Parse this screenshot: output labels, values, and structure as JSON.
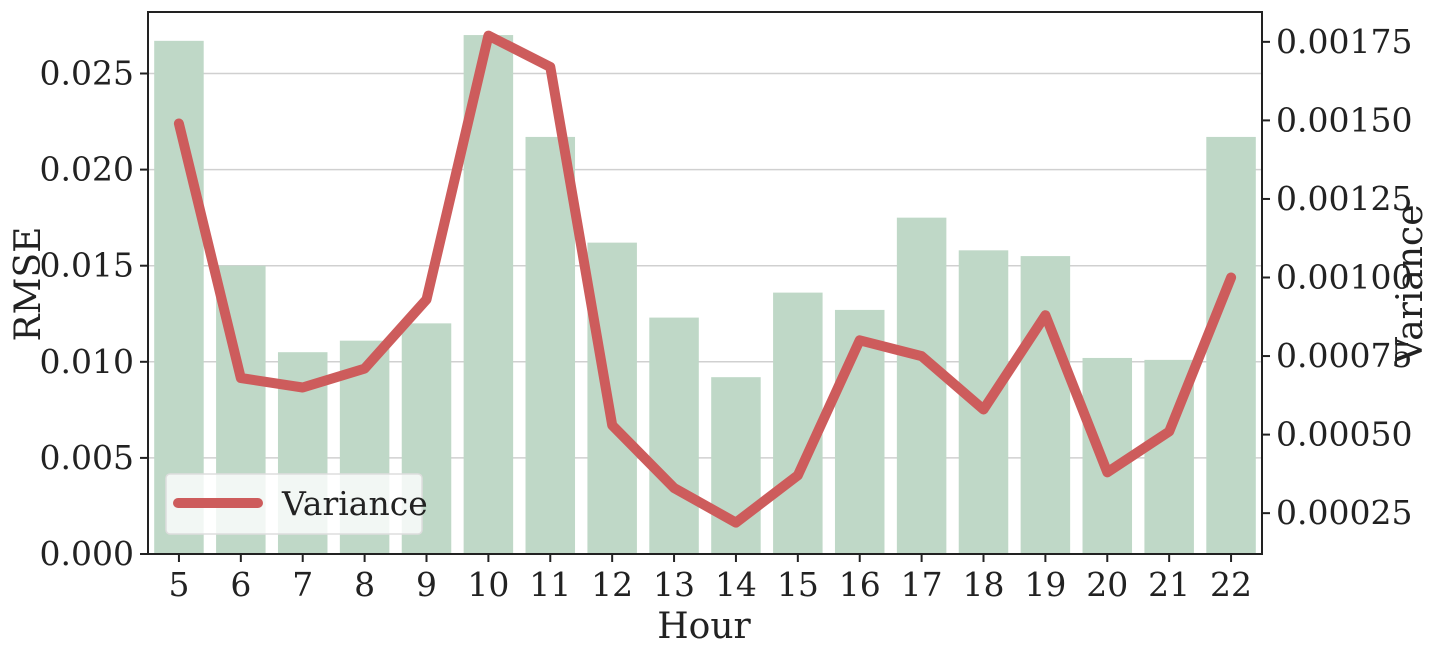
{
  "chart_data": {
    "type": "bar",
    "x": [
      5,
      6,
      7,
      8,
      9,
      10,
      11,
      12,
      13,
      14,
      15,
      16,
      17,
      18,
      19,
      20,
      21,
      22
    ],
    "categories": [
      "5",
      "6",
      "7",
      "8",
      "9",
      "10",
      "11",
      "12",
      "13",
      "14",
      "15",
      "16",
      "17",
      "18",
      "19",
      "20",
      "21",
      "22"
    ],
    "xlabel": "Hour",
    "ylabel": "RMSE",
    "y2label": "Variance",
    "ylim": [
      0,
      0.0282
    ],
    "y2lim": [
      0.00012,
      0.001845
    ],
    "yticks": [
      "0.000",
      "0.005",
      "0.010",
      "0.015",
      "0.020",
      "0.025"
    ],
    "y2ticks": [
      "0.00025",
      "0.00050",
      "0.00075",
      "0.00100",
      "0.00125",
      "0.00150",
      "0.00175"
    ],
    "grid": true,
    "legend_position": "lower-left",
    "series": [
      {
        "name": "RMSE",
        "kind": "bar",
        "axis": "left",
        "color": "#bfd8c7",
        "values": [
          0.0267,
          0.015,
          0.0105,
          0.0111,
          0.012,
          0.027,
          0.0217,
          0.0162,
          0.0123,
          0.0092,
          0.0136,
          0.0127,
          0.0175,
          0.0158,
          0.0155,
          0.0102,
          0.0101,
          0.0217
        ]
      },
      {
        "name": "Variance",
        "kind": "line",
        "axis": "right",
        "color": "#cd5c5c",
        "values": [
          0.00149,
          0.00068,
          0.00065,
          0.00071,
          0.00093,
          0.00177,
          0.00167,
          0.00053,
          0.00033,
          0.00022,
          0.00037,
          0.0008,
          0.00075,
          0.00058,
          0.00088,
          0.00038,
          0.00051,
          0.001
        ]
      }
    ]
  },
  "legend": {
    "variance_label": "Variance"
  }
}
